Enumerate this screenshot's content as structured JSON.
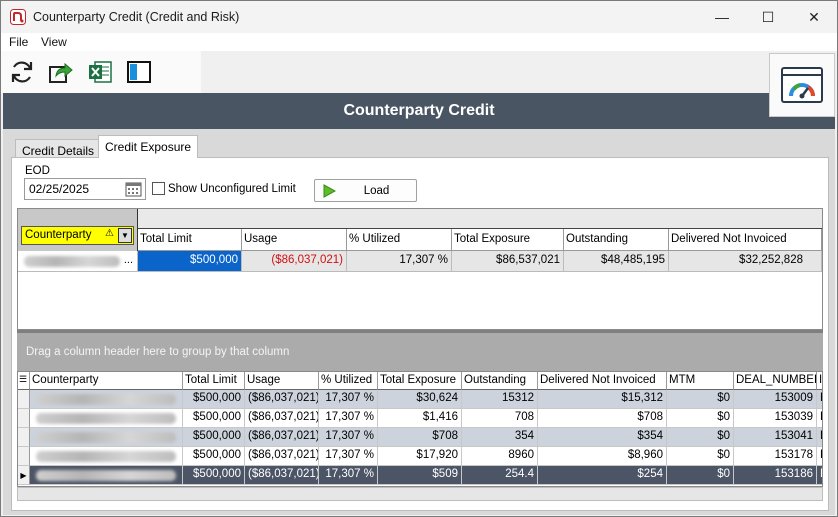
{
  "window": {
    "title": "Counterparty Credit (Credit and Risk)",
    "minimize_glyph": "—",
    "maximize_glyph": "☐",
    "close_glyph": "✕"
  },
  "menu": {
    "file": "File",
    "view": "View"
  },
  "toolbar": {
    "icons": [
      "refresh-icon",
      "export-arrow-icon",
      "excel-icon",
      "layout-panel-icon",
      "gauge-dashboard-icon"
    ]
  },
  "header": {
    "title": "Counterparty Credit"
  },
  "tabs": [
    {
      "label": "Credit Details",
      "active": false
    },
    {
      "label": "Credit Exposure",
      "active": true
    }
  ],
  "filters": {
    "eod_label": "EOD",
    "eod_value": "02/25/2025",
    "show_unconfigured_label": "Show Unconfigured Limit",
    "show_unconfigured_checked": false,
    "load_label": "Load"
  },
  "pivot": {
    "row_field": "Counterparty",
    "row_field_marker": "⚠",
    "columns": [
      "Total Limit",
      "Usage",
      "% Utilized",
      "Total Exposure",
      "Outstanding",
      "Delivered Not Invoiced"
    ],
    "row": {
      "name_suffix": "...",
      "values": [
        "$500,000",
        "($86,037,021)",
        "17,307 %",
        "$86,537,021",
        "$48,485,195",
        "$32,252,828"
      ]
    }
  },
  "group_panel": {
    "text": "Drag a column header here to group by that column"
  },
  "grid": {
    "columns": [
      "Counterparty",
      "Total Limit",
      "Usage",
      "% Utilized",
      "Total Exposure",
      "Outstanding",
      "Delivered Not Invoiced",
      "MTM",
      "DEAL_NUMBER",
      "I"
    ],
    "rows": [
      [
        "$500,000",
        "($86,037,021)",
        "17,307 %",
        "$30,624",
        "15312",
        "$15,312",
        "$0",
        "153009",
        "F"
      ],
      [
        "$500,000",
        "($86,037,021)",
        "17,307 %",
        "$1,416",
        "708",
        "$708",
        "$0",
        "153039",
        "F"
      ],
      [
        "$500,000",
        "($86,037,021)",
        "17,307 %",
        "$708",
        "354",
        "$354",
        "$0",
        "153041",
        "F"
      ],
      [
        "$500,000",
        "($86,037,021)",
        "17,307 %",
        "$17,920",
        "8960",
        "$8,960",
        "$0",
        "153178",
        "F"
      ],
      [
        "$500,000",
        "($86,037,021)",
        "17,307 %",
        "$509",
        "254.4",
        "$254",
        "$0",
        "153186",
        "F"
      ]
    ],
    "selected_row": 4,
    "row_indicator": "▶"
  },
  "colors": {
    "header_band": "#4a5563",
    "selected_cell": "#0a64c9",
    "negative_text": "#d01010",
    "chip_yellow": "#ffff00",
    "alt_row": "#cdd3dc",
    "selected_row": "#4c5566"
  }
}
